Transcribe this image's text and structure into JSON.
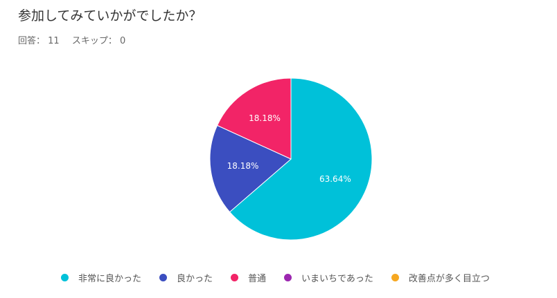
{
  "title": "参加してみていかがでしたか？",
  "meta": {
    "responses_label": "回答：",
    "responses": "11",
    "skipped_label": "スキップ：",
    "skipped": "0"
  },
  "chart_data": {
    "type": "pie",
    "title": "参加してみていかがでしたか？",
    "categories": [
      "非常に良かった",
      "良かった",
      "普通",
      "いまいちであった",
      "改善点が多く目立つ"
    ],
    "values": [
      63.64,
      18.18,
      18.18,
      0,
      0
    ],
    "labels": [
      "63.64%",
      "18.18%",
      "18.18%",
      "",
      ""
    ],
    "colors": [
      "#00C1D9",
      "#3B4EC0",
      "#F22467",
      "#9C27B0",
      "#F6A821"
    ],
    "legend": "bottom"
  }
}
